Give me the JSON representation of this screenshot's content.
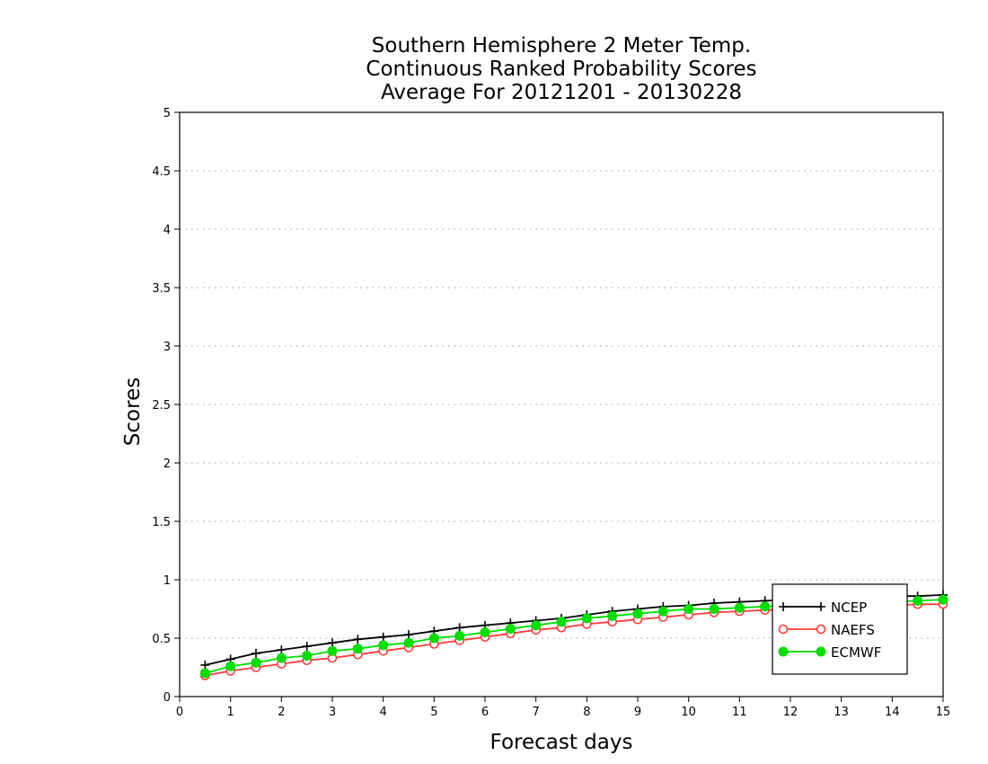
{
  "chart_data": {
    "type": "line",
    "title": [
      "Southern Hemisphere 2 Meter Temp.",
      "Continuous Ranked Probability Scores",
      "Average For 20121201 - 20130228"
    ],
    "xlabel": "Forecast days",
    "ylabel": "Scores",
    "xlim": [
      0,
      15
    ],
    "ylim": [
      0,
      5
    ],
    "xticks": [
      0,
      1,
      2,
      3,
      4,
      5,
      6,
      7,
      8,
      9,
      10,
      11,
      12,
      13,
      14,
      15
    ],
    "yticks": [
      0,
      0.5,
      1,
      1.5,
      2,
      2.5,
      3,
      3.5,
      4,
      4.5,
      5
    ],
    "ytick_labels": [
      "0",
      "0.5",
      "1",
      "1.5",
      "2",
      "2.5",
      "3",
      "3.5",
      "4",
      "4.5",
      "5"
    ],
    "grid": "horizontal dotted",
    "legend_position": "bottom-right",
    "x": [
      0.5,
      1,
      1.5,
      2,
      2.5,
      3,
      3.5,
      4,
      4.5,
      5,
      5.5,
      6,
      6.5,
      7,
      7.5,
      8,
      8.5,
      9,
      9.5,
      10,
      10.5,
      11,
      11.5,
      12,
      12.5,
      13,
      13.5,
      14,
      14.5,
      15
    ],
    "series": [
      {
        "name": "NCEP",
        "color": "#000000",
        "marker": "plus",
        "values": [
          0.27,
          0.32,
          0.37,
          0.4,
          0.43,
          0.46,
          0.49,
          0.51,
          0.53,
          0.56,
          0.59,
          0.61,
          0.63,
          0.65,
          0.67,
          0.7,
          0.73,
          0.75,
          0.77,
          0.78,
          0.8,
          0.81,
          0.82,
          0.83,
          0.84,
          0.85,
          0.85,
          0.86,
          0.86,
          0.87
        ]
      },
      {
        "name": "NAEFS",
        "color": "#ff3b3b",
        "marker": "open-circle",
        "values": [
          0.18,
          0.22,
          0.25,
          0.28,
          0.31,
          0.33,
          0.36,
          0.39,
          0.42,
          0.45,
          0.48,
          0.51,
          0.54,
          0.57,
          0.59,
          0.62,
          0.64,
          0.66,
          0.68,
          0.7,
          0.72,
          0.73,
          0.74,
          0.75,
          0.76,
          0.77,
          0.78,
          0.78,
          0.79,
          0.79
        ]
      },
      {
        "name": "ECMWF",
        "color": "#00dd00",
        "marker": "filled-circle",
        "values": [
          0.2,
          0.26,
          0.29,
          0.33,
          0.35,
          0.39,
          0.41,
          0.44,
          0.46,
          0.5,
          0.52,
          0.55,
          0.58,
          0.61,
          0.64,
          0.67,
          0.69,
          0.71,
          0.73,
          0.75,
          0.75,
          0.76,
          0.77,
          0.78,
          0.79,
          0.8,
          0.8,
          0.81,
          0.82,
          0.83
        ]
      }
    ]
  }
}
